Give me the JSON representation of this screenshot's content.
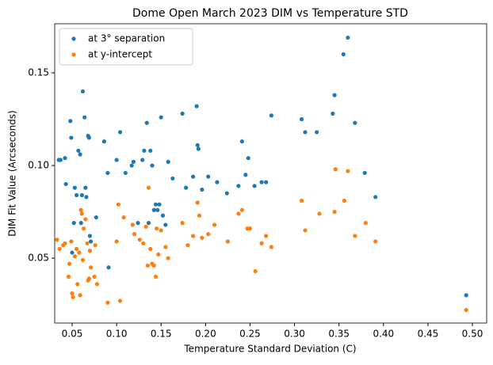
{
  "chart_data": {
    "type": "scatter",
    "title": "Dome Open March 2023 DIM vs Temperature STD",
    "x_label": "Temperature Standard Deviation (C)",
    "y_label": "DIM Fit Value (Arcseconds)",
    "xlim": [
      0.0304,
      0.516
    ],
    "ylim": [
      0.015,
      0.1765
    ],
    "xticks": [
      {
        "value": 0.05,
        "label": "0.05"
      },
      {
        "value": 0.1,
        "label": "0.10"
      },
      {
        "value": 0.15,
        "label": "0.15"
      },
      {
        "value": 0.2,
        "label": "0.20"
      },
      {
        "value": 0.25,
        "label": "0.25"
      },
      {
        "value": 0.3,
        "label": "0.30"
      },
      {
        "value": 0.35,
        "label": "0.35"
      },
      {
        "value": 0.4,
        "label": "0.40"
      },
      {
        "value": 0.45,
        "label": "0.45"
      },
      {
        "value": 0.5,
        "label": "0.50"
      }
    ],
    "yticks": [
      {
        "value": 0.05,
        "label": "0.05"
      },
      {
        "value": 0.1,
        "label": "0.10"
      },
      {
        "value": 0.15,
        "label": "0.15"
      }
    ],
    "legend": "upper left",
    "series": [
      {
        "name": "at 3° separation",
        "color": "#1f77b4",
        "x": [
          0.035,
          0.037,
          0.042,
          0.043,
          0.048,
          0.049,
          0.05,
          0.052,
          0.053,
          0.055,
          0.057,
          0.059,
          0.06,
          0.061,
          0.062,
          0.064,
          0.065,
          0.066,
          0.068,
          0.069,
          0.07,
          0.071,
          0.077,
          0.086,
          0.09,
          0.091,
          0.1,
          0.104,
          0.11,
          0.117,
          0.119,
          0.124,
          0.129,
          0.131,
          0.134,
          0.136,
          0.138,
          0.14,
          0.142,
          0.144,
          0.146,
          0.148,
          0.15,
          0.152,
          0.155,
          0.158,
          0.163,
          0.174,
          0.178,
          0.186,
          0.19,
          0.191,
          0.192,
          0.196,
          0.203,
          0.213,
          0.224,
          0.237,
          0.241,
          0.245,
          0.248,
          0.255,
          0.263,
          0.268,
          0.274,
          0.308,
          0.312,
          0.325,
          0.343,
          0.345,
          0.355,
          0.36,
          0.368,
          0.379,
          0.391,
          0.493
        ],
        "y": [
          0.103,
          0.103,
          0.104,
          0.09,
          0.124,
          0.115,
          0.053,
          0.069,
          0.088,
          0.084,
          0.108,
          0.106,
          0.069,
          0.084,
          0.14,
          0.126,
          0.088,
          0.083,
          0.116,
          0.115,
          0.062,
          0.059,
          0.072,
          0.113,
          0.096,
          0.045,
          0.103,
          0.118,
          0.096,
          0.1,
          0.102,
          0.069,
          0.103,
          0.108,
          0.123,
          0.069,
          0.108,
          0.1,
          0.076,
          0.079,
          0.076,
          0.079,
          0.126,
          0.073,
          0.068,
          0.102,
          0.093,
          0.128,
          0.088,
          0.094,
          0.132,
          0.111,
          0.109,
          0.087,
          0.094,
          0.091,
          0.085,
          0.089,
          0.113,
          0.095,
          0.104,
          0.089,
          0.091,
          0.091,
          0.127,
          0.125,
          0.118,
          0.118,
          0.128,
          0.138,
          0.16,
          0.169,
          0.123,
          0.096,
          0.083,
          0.03
        ]
      },
      {
        "name": "at y-intercept",
        "color": "#ff7f0e",
        "x": [
          0.033,
          0.036,
          0.04,
          0.042,
          0.046,
          0.047,
          0.049,
          0.05,
          0.051,
          0.053,
          0.055,
          0.056,
          0.058,
          0.059,
          0.06,
          0.061,
          0.062,
          0.063,
          0.065,
          0.067,
          0.068,
          0.069,
          0.07,
          0.071,
          0.075,
          0.076,
          0.078,
          0.09,
          0.1,
          0.102,
          0.104,
          0.108,
          0.118,
          0.12,
          0.126,
          0.13,
          0.133,
          0.135,
          0.136,
          0.138,
          0.14,
          0.142,
          0.144,
          0.145,
          0.147,
          0.15,
          0.155,
          0.158,
          0.174,
          0.18,
          0.186,
          0.191,
          0.193,
          0.196,
          0.203,
          0.21,
          0.225,
          0.237,
          0.241,
          0.247,
          0.25,
          0.256,
          0.263,
          0.268,
          0.274,
          0.308,
          0.312,
          0.328,
          0.345,
          0.346,
          0.356,
          0.36,
          0.368,
          0.38,
          0.391,
          0.493
        ],
        "y": [
          0.06,
          0.055,
          0.057,
          0.058,
          0.04,
          0.047,
          0.059,
          0.031,
          0.029,
          0.051,
          0.055,
          0.036,
          0.053,
          0.03,
          0.076,
          0.074,
          0.049,
          0.066,
          0.071,
          0.058,
          0.038,
          0.039,
          0.054,
          0.045,
          0.04,
          0.057,
          0.036,
          0.026,
          0.059,
          0.079,
          0.027,
          0.072,
          0.068,
          0.063,
          0.06,
          0.058,
          0.067,
          0.046,
          0.088,
          0.055,
          0.047,
          0.046,
          0.04,
          0.066,
          0.052,
          0.065,
          0.056,
          0.05,
          0.069,
          0.057,
          0.062,
          0.08,
          0.073,
          0.061,
          0.063,
          0.068,
          0.059,
          0.074,
          0.076,
          0.066,
          0.066,
          0.043,
          0.058,
          0.062,
          0.056,
          0.081,
          0.065,
          0.074,
          0.075,
          0.098,
          0.081,
          0.097,
          0.062,
          0.069,
          0.059,
          0.022
        ]
      }
    ]
  }
}
